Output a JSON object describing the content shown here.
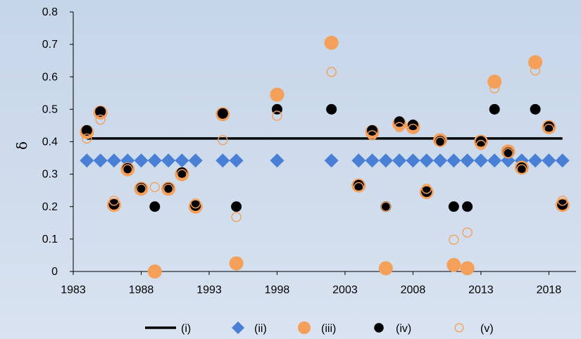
{
  "chart_data": {
    "type": "scatter",
    "title": "",
    "xlabel": "",
    "ylabel": "δ",
    "xlim": [
      1983,
      2020
    ],
    "ylim": [
      0,
      0.8
    ],
    "x_ticks": [
      "1983",
      "1988",
      "1993",
      "1998",
      "2003",
      "2008",
      "2013",
      "2018"
    ],
    "y_ticks": [
      "0",
      "0.1",
      "0.2",
      "0.3",
      "0.4",
      "0.5",
      "0.6",
      "0.7",
      "0.8"
    ],
    "grid": false,
    "legend_position": "bottom",
    "colors": {
      "line": "#000000",
      "diamond": "#4a7fd6",
      "orange": "#f5a05a",
      "black": "#000000"
    },
    "series": [
      {
        "name": "(i)",
        "marker": "line",
        "x": [
          1984,
          2019
        ],
        "y": [
          0.41,
          0.41
        ]
      },
      {
        "name": "(ii)",
        "marker": "diamond",
        "x": [
          1984,
          1985,
          1986,
          1987,
          1988,
          1989,
          1990,
          1991,
          1992,
          1994,
          1995,
          1998,
          2002,
          2004,
          2005,
          2006,
          2007,
          2008,
          2009,
          2010,
          2011,
          2012,
          2013,
          2014,
          2015,
          2016,
          2017,
          2018,
          2019
        ],
        "y": [
          0.342,
          0.342,
          0.342,
          0.342,
          0.342,
          0.342,
          0.342,
          0.342,
          0.342,
          0.342,
          0.342,
          0.342,
          0.342,
          0.342,
          0.342,
          0.342,
          0.342,
          0.342,
          0.342,
          0.342,
          0.342,
          0.342,
          0.342,
          0.342,
          0.342,
          0.342,
          0.342,
          0.342,
          0.342
        ]
      },
      {
        "name": "(iii)",
        "marker": "filled-circle-orange",
        "x": [
          1984,
          1985,
          1986,
          1987,
          1988,
          1989,
          1990,
          1991,
          1992,
          1994,
          1995,
          1998,
          2002,
          2004,
          2005,
          2006,
          2007,
          2008,
          2009,
          2010,
          2011,
          2012,
          2013,
          2014,
          2015,
          2016,
          2017,
          2018,
          2019
        ],
        "y": [
          0.43,
          0.49,
          0.205,
          0.315,
          0.255,
          0.0,
          0.255,
          0.3,
          0.2,
          0.485,
          0.025,
          0.545,
          0.705,
          0.265,
          0.43,
          0.01,
          0.455,
          0.445,
          0.245,
          0.405,
          0.02,
          0.01,
          0.4,
          0.585,
          0.37,
          0.32,
          0.645,
          0.445,
          0.205
        ]
      },
      {
        "name": "(iv)",
        "marker": "filled-circle-black",
        "x": [
          1984,
          1985,
          1986,
          1987,
          1988,
          1989,
          1990,
          1991,
          1992,
          1994,
          1995,
          1998,
          2002,
          2004,
          2005,
          2006,
          2007,
          2008,
          2009,
          2010,
          2011,
          2012,
          2013,
          2014,
          2015,
          2016,
          2017,
          2018,
          2019
        ],
        "y": [
          0.435,
          0.493,
          0.207,
          0.318,
          0.257,
          0.2,
          0.257,
          0.305,
          0.203,
          0.487,
          0.2,
          0.5,
          0.5,
          0.266,
          0.435,
          0.2,
          0.462,
          0.452,
          0.246,
          0.402,
          0.2,
          0.2,
          0.401,
          0.5,
          0.366,
          0.32,
          0.5,
          0.447,
          0.206
        ]
      },
      {
        "name": "(v)",
        "marker": "open-circle-orange",
        "x": [
          1984,
          1985,
          1986,
          1987,
          1988,
          1989,
          1990,
          1991,
          1992,
          1994,
          1995,
          1998,
          2002,
          2004,
          2005,
          2006,
          2007,
          2008,
          2009,
          2010,
          2011,
          2012,
          2013,
          2014,
          2015,
          2016,
          2017,
          2018,
          2019
        ],
        "y": [
          0.41,
          0.468,
          0.218,
          0.315,
          0.255,
          0.26,
          0.255,
          0.3,
          0.21,
          0.405,
          0.168,
          0.48,
          0.615,
          0.26,
          0.42,
          0.2,
          0.445,
          0.44,
          0.255,
          0.4,
          0.098,
          0.12,
          0.39,
          0.565,
          0.365,
          0.315,
          0.62,
          0.44,
          0.218
        ]
      }
    ]
  }
}
